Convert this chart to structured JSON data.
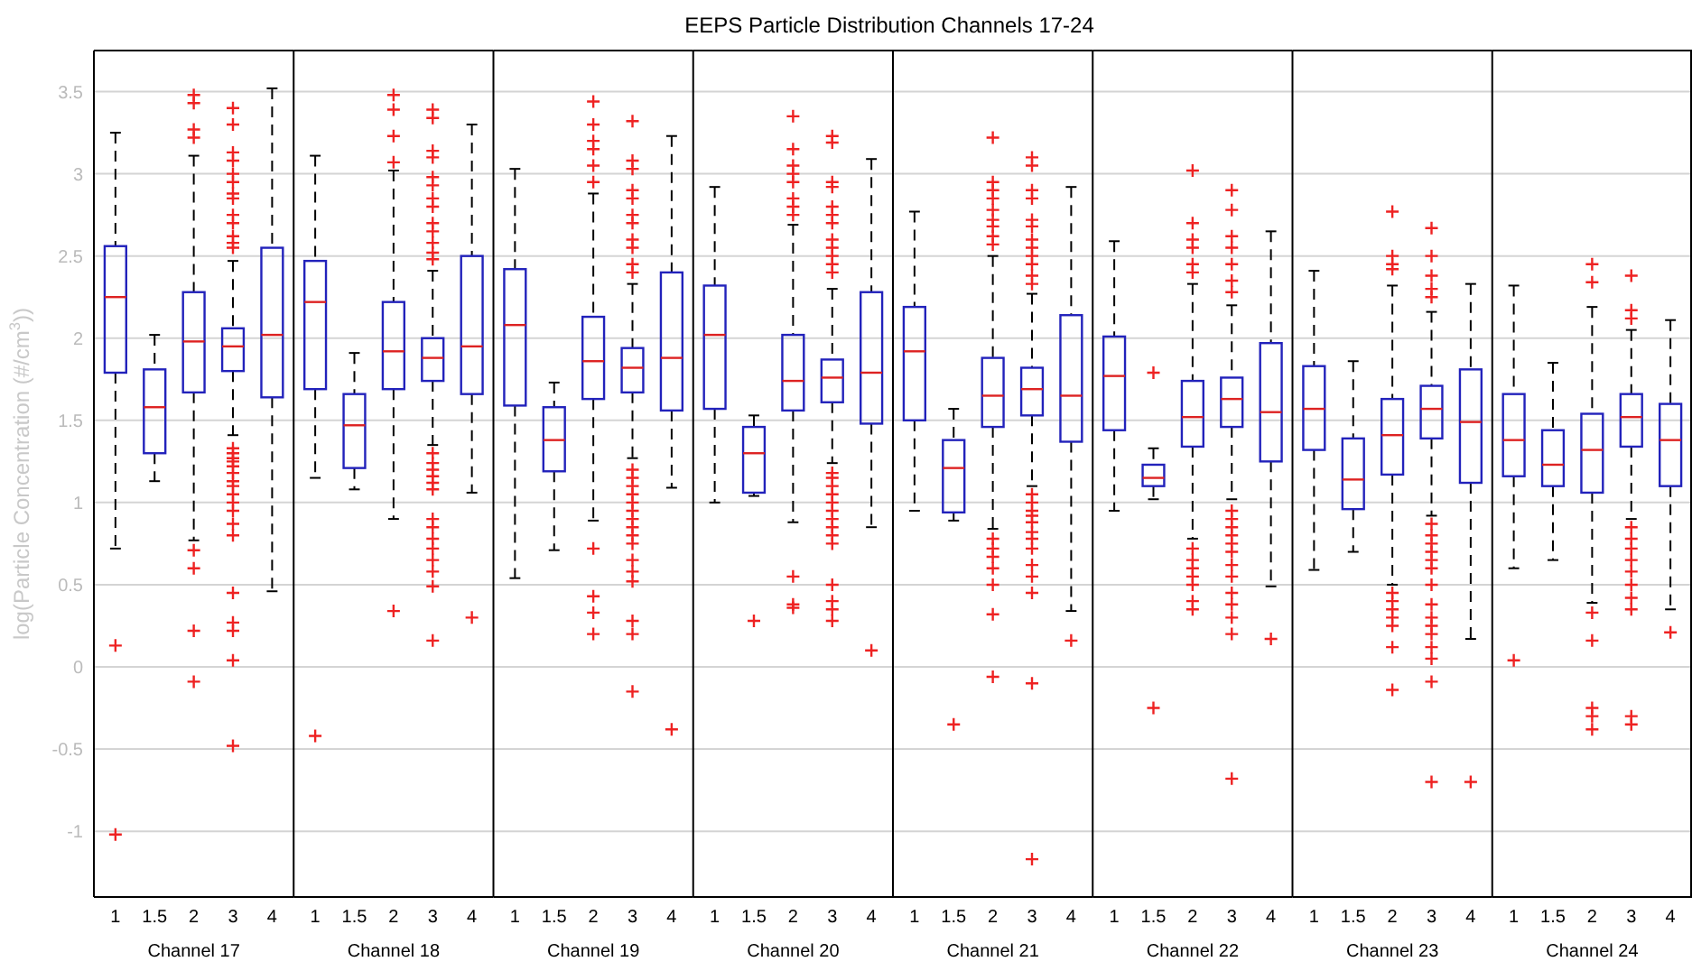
{
  "chart_data": [
    {
      "type": "box",
      "ylabel": "log(Particle Concentration (#/cm$^{3}$))",
      "xlabel": "Channel 17",
      "categories": [
        "1",
        "1.5",
        "2",
        "3",
        "4"
      ],
      "ylim": [
        -1.4,
        3.75
      ],
      "yticks": [
        -1,
        -0.5,
        0,
        0.5,
        1,
        1.5,
        2,
        2.5,
        3,
        3.5
      ],
      "grid": "y",
      "boxes": [
        {
          "low": 0.72,
          "q1": 1.79,
          "median": 2.25,
          "q3": 2.56,
          "high": 3.25,
          "outliers": [
            0.13,
            -1.02
          ]
        },
        {
          "low": 1.13,
          "q1": 1.3,
          "median": 1.58,
          "q3": 1.81,
          "high": 2.02
        },
        {
          "low": 0.77,
          "q1": 1.67,
          "median": 1.98,
          "q3": 2.28,
          "high": 3.11,
          "outliers": [
            3.48,
            3.43,
            3.27,
            3.22,
            0.71,
            0.6,
            0.22,
            -0.09
          ]
        },
        {
          "low": 1.41,
          "q1": 1.8,
          "median": 1.95,
          "q3": 2.06,
          "high": 2.47,
          "outliers": [
            3.4,
            3.3,
            3.13,
            3.08,
            3.0,
            2.95,
            2.88,
            2.85,
            2.75,
            2.7,
            2.62,
            2.58,
            2.55,
            1.33,
            1.3,
            1.27,
            1.25,
            1.22,
            1.18,
            1.13,
            1.1,
            1.05,
            1.0,
            0.95,
            0.87,
            0.8,
            0.45,
            0.27,
            0.22,
            0.04,
            -0.48
          ]
        },
        {
          "low": 0.46,
          "q1": 1.64,
          "median": 2.02,
          "q3": 2.55,
          "high": 3.52
        }
      ]
    },
    {
      "type": "box",
      "xlabel": "Channel 18",
      "categories": [
        "1",
        "1.5",
        "2",
        "3",
        "4"
      ],
      "ylim": [
        -1.4,
        3.75
      ],
      "yticks": [
        -1,
        -0.5,
        0,
        0.5,
        1,
        1.5,
        2,
        2.5,
        3,
        3.5
      ],
      "grid": "y",
      "tick_labels": "x",
      "boxes": [
        {
          "low": 1.15,
          "q1": 1.69,
          "median": 2.22,
          "q3": 2.47,
          "high": 3.11,
          "outliers": [
            -0.42
          ]
        },
        {
          "low": 1.08,
          "q1": 1.21,
          "median": 1.47,
          "q3": 1.66,
          "high": 1.91
        },
        {
          "low": 0.9,
          "q1": 1.69,
          "median": 1.92,
          "q3": 2.22,
          "high": 3.02,
          "outliers": [
            3.48,
            3.39,
            3.23,
            3.07,
            0.34
          ]
        },
        {
          "low": 1.35,
          "q1": 1.74,
          "median": 1.88,
          "q3": 2.0,
          "high": 2.41,
          "outliers": [
            3.39,
            3.34,
            3.14,
            3.1,
            2.98,
            2.93,
            2.85,
            2.8,
            2.7,
            2.65,
            2.58,
            2.52,
            2.48,
            1.3,
            1.24,
            1.2,
            1.16,
            1.12,
            1.08,
            0.9,
            0.85,
            0.78,
            0.72,
            0.65,
            0.58,
            0.49,
            0.16
          ]
        },
        {
          "low": 1.06,
          "q1": 1.66,
          "median": 1.95,
          "q3": 2.5,
          "high": 3.3,
          "outliers": [
            0.3
          ]
        }
      ]
    },
    {
      "type": "box",
      "xlabel": "Channel 19",
      "categories": [
        "1",
        "1.5",
        "2",
        "3",
        "4"
      ],
      "ylim": [
        -1.4,
        3.75
      ],
      "yticks": [
        -1,
        -0.5,
        0,
        0.5,
        1,
        1.5,
        2,
        2.5,
        3,
        3.5
      ],
      "grid": "y",
      "tick_labels": "x",
      "boxes": [
        {
          "low": 0.54,
          "q1": 1.59,
          "median": 2.08,
          "q3": 2.42,
          "high": 3.03
        },
        {
          "low": 0.71,
          "q1": 1.19,
          "median": 1.38,
          "q3": 1.58,
          "high": 1.73
        },
        {
          "low": 0.89,
          "q1": 1.63,
          "median": 1.86,
          "q3": 2.13,
          "high": 2.88,
          "outliers": [
            3.44,
            3.3,
            3.2,
            3.15,
            3.05,
            2.95,
            0.72,
            0.43,
            0.33,
            0.2
          ]
        },
        {
          "low": 1.27,
          "q1": 1.67,
          "median": 1.82,
          "q3": 1.94,
          "high": 2.33,
          "outliers": [
            3.32,
            3.08,
            3.03,
            2.9,
            2.85,
            2.75,
            2.7,
            2.6,
            2.55,
            2.45,
            2.4,
            1.2,
            1.15,
            1.1,
            1.05,
            1.0,
            0.95,
            0.9,
            0.85,
            0.8,
            0.75,
            0.65,
            0.58,
            0.52,
            0.28,
            0.2,
            -0.15
          ]
        },
        {
          "low": 1.09,
          "q1": 1.56,
          "median": 1.88,
          "q3": 2.4,
          "high": 3.23,
          "outliers": [
            -0.38
          ]
        }
      ]
    },
    {
      "type": "box",
      "title": "EEPS Particle Distribution Channels 17-24",
      "xlabel": "Channel 20",
      "categories": [
        "1",
        "1.5",
        "2",
        "3",
        "4"
      ],
      "ylim": [
        -1.4,
        3.75
      ],
      "yticks": [
        -1,
        -0.5,
        0,
        0.5,
        1,
        1.5,
        2,
        2.5,
        3,
        3.5
      ],
      "grid": "y",
      "tick_labels": "x",
      "boxes": [
        {
          "low": 1.0,
          "q1": 1.57,
          "median": 2.02,
          "q3": 2.32,
          "high": 2.92
        },
        {
          "low": 1.04,
          "q1": 1.06,
          "median": 1.3,
          "q3": 1.46,
          "high": 1.53,
          "outliers": [
            0.28
          ]
        },
        {
          "low": 0.88,
          "q1": 1.56,
          "median": 1.74,
          "q3": 2.02,
          "high": 2.69,
          "outliers": [
            3.35,
            3.15,
            3.05,
            3.0,
            2.95,
            2.85,
            2.8,
            2.75,
            0.55,
            0.38,
            0.36
          ]
        },
        {
          "low": 1.24,
          "q1": 1.61,
          "median": 1.76,
          "q3": 1.87,
          "high": 2.3,
          "outliers": [
            3.23,
            3.19,
            2.95,
            2.92,
            2.8,
            2.75,
            2.7,
            2.6,
            2.55,
            2.5,
            2.45,
            2.4,
            1.18,
            1.15,
            1.1,
            1.05,
            1.0,
            0.95,
            0.9,
            0.85,
            0.8,
            0.75,
            0.5,
            0.4,
            0.35,
            0.28
          ]
        },
        {
          "low": 0.85,
          "q1": 1.48,
          "median": 1.79,
          "q3": 2.28,
          "high": 3.09,
          "outliers": [
            0.1
          ]
        }
      ]
    },
    {
      "type": "box",
      "xlabel": "Channel 21",
      "categories": [
        "1",
        "1.5",
        "2",
        "3",
        "4"
      ],
      "ylim": [
        -1.4,
        3.75
      ],
      "yticks": [
        -1,
        -0.5,
        0,
        0.5,
        1,
        1.5,
        2,
        2.5,
        3,
        3.5
      ],
      "grid": "y",
      "tick_labels": "x",
      "boxes": [
        {
          "low": 0.95,
          "q1": 1.5,
          "median": 1.92,
          "q3": 2.19,
          "high": 2.77
        },
        {
          "low": 0.89,
          "q1": 0.94,
          "median": 1.21,
          "q3": 1.38,
          "high": 1.57,
          "outliers": [
            -0.35
          ]
        },
        {
          "low": 0.84,
          "q1": 1.46,
          "median": 1.65,
          "q3": 1.88,
          "high": 2.5,
          "outliers": [
            3.22,
            2.95,
            2.9,
            2.85,
            2.78,
            2.72,
            2.68,
            2.62,
            2.57,
            0.78,
            0.72,
            0.67,
            0.6,
            0.5,
            0.32,
            -0.06
          ]
        },
        {
          "low": 1.1,
          "q1": 1.53,
          "median": 1.69,
          "q3": 1.82,
          "high": 2.27,
          "outliers": [
            3.1,
            3.05,
            2.9,
            2.85,
            2.72,
            2.68,
            2.6,
            2.55,
            2.5,
            2.45,
            2.38,
            2.33,
            1.05,
            1.0,
            0.95,
            0.92,
            0.88,
            0.82,
            0.78,
            0.72,
            0.62,
            0.55,
            0.45,
            -0.1,
            -1.17
          ]
        },
        {
          "low": 0.34,
          "q1": 1.37,
          "median": 1.65,
          "q3": 2.14,
          "high": 2.92,
          "outliers": [
            0.16
          ]
        }
      ]
    },
    {
      "type": "box",
      "xlabel": "Channel 22",
      "categories": [
        "1",
        "1.5",
        "2",
        "3",
        "4"
      ],
      "ylim": [
        -1.4,
        3.75
      ],
      "yticks": [
        -1,
        -0.5,
        0,
        0.5,
        1,
        1.5,
        2,
        2.5,
        3,
        3.5
      ],
      "grid": "y",
      "tick_labels": "x",
      "boxes": [
        {
          "low": 0.95,
          "q1": 1.44,
          "median": 1.77,
          "q3": 2.01,
          "high": 2.59
        },
        {
          "low": 1.02,
          "q1": 1.1,
          "median": 1.15,
          "q3": 1.23,
          "high": 1.33,
          "outliers": [
            1.79,
            -0.25
          ]
        },
        {
          "low": 0.78,
          "q1": 1.34,
          "median": 1.52,
          "q3": 1.74,
          "high": 2.33,
          "outliers": [
            3.02,
            2.7,
            2.6,
            2.55,
            2.45,
            2.4,
            0.72,
            0.65,
            0.6,
            0.55,
            0.5,
            0.4,
            0.35
          ]
        },
        {
          "low": 1.02,
          "q1": 1.46,
          "median": 1.63,
          "q3": 1.76,
          "high": 2.2,
          "outliers": [
            2.9,
            2.78,
            2.62,
            2.55,
            2.45,
            2.35,
            2.28,
            0.95,
            0.9,
            0.85,
            0.8,
            0.75,
            0.7,
            0.62,
            0.55,
            0.45,
            0.38,
            0.3,
            0.2,
            -0.68
          ]
        },
        {
          "low": 0.49,
          "q1": 1.25,
          "median": 1.55,
          "q3": 1.97,
          "high": 2.65,
          "outliers": [
            0.17
          ]
        }
      ]
    },
    {
      "type": "box",
      "xlabel": "Channel 23",
      "categories": [
        "1",
        "1.5",
        "2",
        "3",
        "4"
      ],
      "ylim": [
        -1.4,
        3.75
      ],
      "yticks": [
        -1,
        -0.5,
        0,
        0.5,
        1,
        1.5,
        2,
        2.5,
        3,
        3.5
      ],
      "grid": "y",
      "tick_labels": "x",
      "boxes": [
        {
          "low": 0.59,
          "q1": 1.32,
          "median": 1.57,
          "q3": 1.83,
          "high": 2.41
        },
        {
          "low": 0.7,
          "q1": 0.96,
          "median": 1.14,
          "q3": 1.39,
          "high": 1.86
        },
        {
          "low": 0.5,
          "q1": 1.17,
          "median": 1.41,
          "q3": 1.63,
          "high": 2.32,
          "outliers": [
            2.77,
            2.5,
            2.45,
            2.42,
            0.45,
            0.4,
            0.35,
            0.3,
            0.25,
            0.12,
            -0.14
          ]
        },
        {
          "low": 0.92,
          "q1": 1.39,
          "median": 1.57,
          "q3": 1.71,
          "high": 2.16,
          "outliers": [
            2.67,
            2.5,
            2.38,
            2.3,
            2.25,
            0.87,
            0.8,
            0.75,
            0.7,
            0.65,
            0.6,
            0.5,
            0.38,
            0.3,
            0.25,
            0.2,
            0.12,
            0.05,
            -0.09,
            -0.7
          ]
        },
        {
          "low": 0.17,
          "q1": 1.12,
          "median": 1.49,
          "q3": 1.81,
          "high": 2.33,
          "outliers": [
            -0.7
          ]
        }
      ]
    },
    {
      "type": "box",
      "xlabel": "Channel 24",
      "categories": [
        "1",
        "1.5",
        "2",
        "3",
        "4"
      ],
      "ylim": [
        -1.4,
        3.75
      ],
      "yticks": [
        -1,
        -0.5,
        0,
        0.5,
        1,
        1.5,
        2,
        2.5,
        3,
        3.5
      ],
      "grid": "y",
      "tick_labels": "x",
      "boxes": [
        {
          "low": 0.6,
          "q1": 1.16,
          "median": 1.38,
          "q3": 1.66,
          "high": 2.32,
          "outliers": [
            0.04
          ]
        },
        {
          "low": 0.65,
          "q1": 1.1,
          "median": 1.23,
          "q3": 1.44,
          "high": 1.85
        },
        {
          "low": 0.39,
          "q1": 1.06,
          "median": 1.32,
          "q3": 1.54,
          "high": 2.19,
          "outliers": [
            2.45,
            2.34,
            0.33,
            0.16,
            -0.25,
            -0.3,
            -0.38
          ]
        },
        {
          "low": 0.9,
          "q1": 1.34,
          "median": 1.52,
          "q3": 1.66,
          "high": 2.05,
          "outliers": [
            2.38,
            2.17,
            2.12,
            0.85,
            0.78,
            0.72,
            0.65,
            0.58,
            0.5,
            0.42,
            0.35,
            -0.3,
            -0.35
          ]
        },
        {
          "low": 0.35,
          "q1": 1.1,
          "median": 1.38,
          "q3": 1.6,
          "high": 2.11,
          "outliers": [
            0.21
          ]
        }
      ]
    }
  ]
}
